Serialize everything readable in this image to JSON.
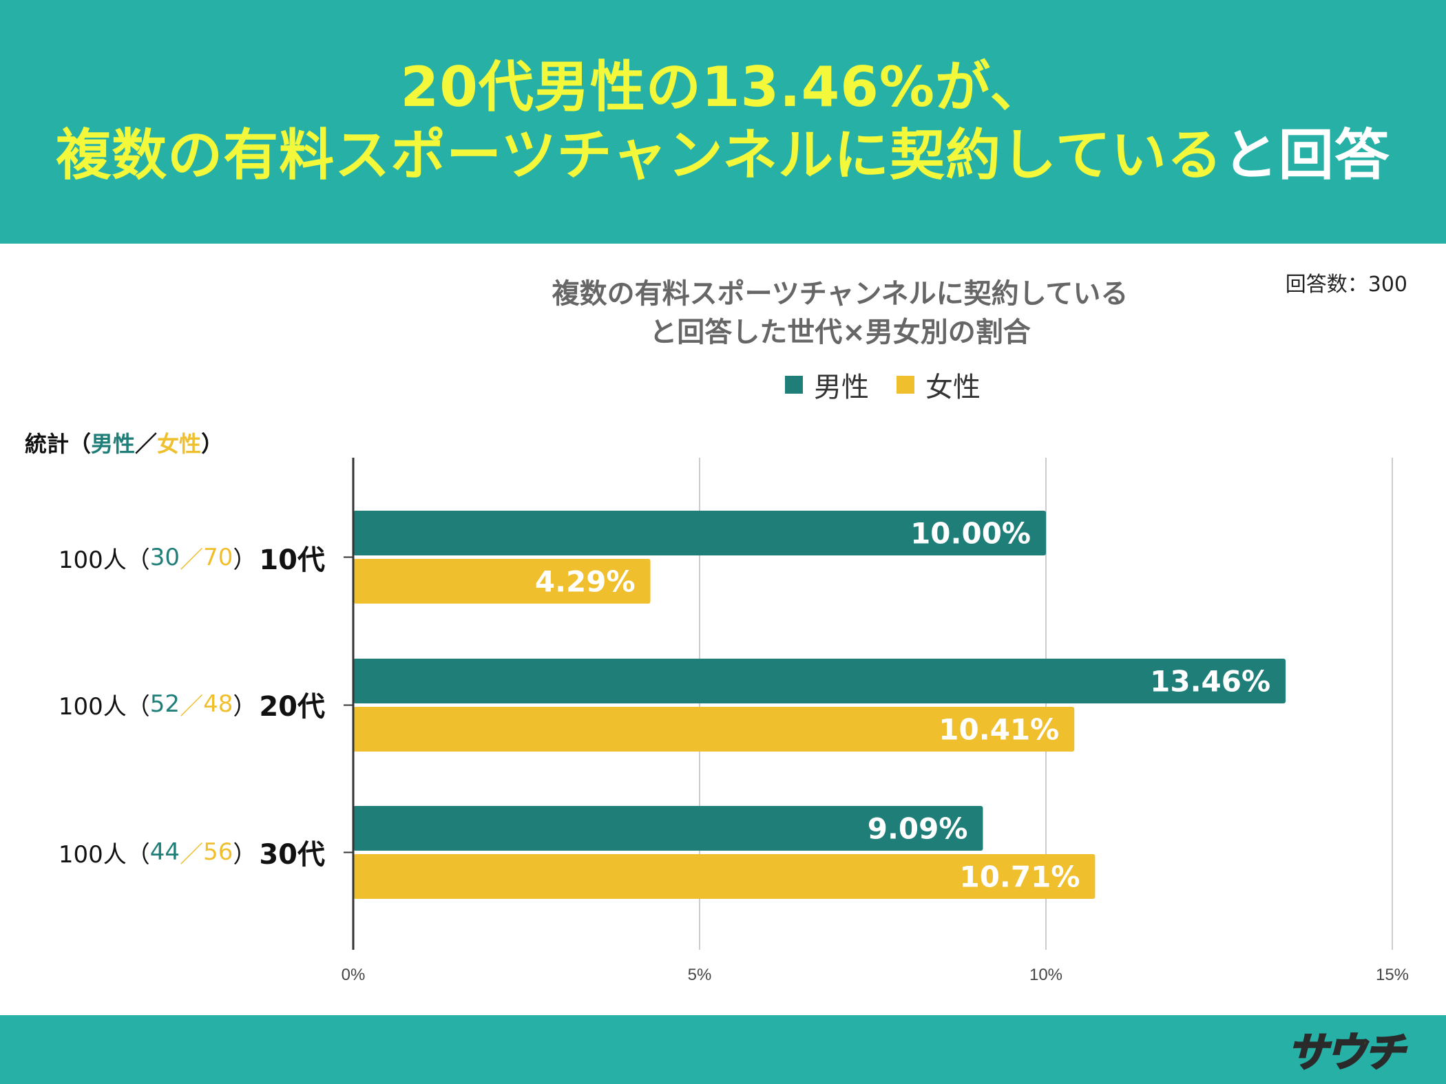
{
  "header": {
    "line1": "20代男性の13.46%が、",
    "line2_main": "複数の有料スポーツチャンネルに契約している",
    "line2_tail": "と回答"
  },
  "respondents": "回答数：300",
  "stats": {
    "label": "統計（",
    "male_word": "男性",
    "sep": "／",
    "female_word": "女性",
    "close": "）",
    "rows": [
      {
        "total": "100人（",
        "male": "30",
        "sep": "／",
        "female": "70",
        "close": "）",
        "age": "10代"
      },
      {
        "total": "100人（",
        "male": "52",
        "sep": "／",
        "female": "48",
        "close": "）",
        "age": "20代"
      },
      {
        "total": "100人（",
        "male": "44",
        "sep": "／",
        "female": "56",
        "close": "）",
        "age": "30代"
      }
    ]
  },
  "logo_text": "サウチ",
  "colors": {
    "male": "#1f7f78",
    "female": "#efbf2e",
    "header_bg": "#26b0a6",
    "headline": "#f3f83a"
  },
  "chart_data": {
    "type": "bar",
    "orientation": "horizontal",
    "title": [
      "複数の有料スポーツチャンネルに契約している",
      "と回答した世代×男女別の割合"
    ],
    "categories": [
      "10代",
      "20代",
      "30代"
    ],
    "series": [
      {
        "name": "男性",
        "values": [
          10.0,
          13.46,
          9.09
        ],
        "labels": [
          "10.00%",
          "13.46%",
          "9.09%"
        ]
      },
      {
        "name": "女性",
        "values": [
          4.29,
          10.41,
          10.71
        ],
        "labels": [
          "4.29%",
          "10.41%",
          "10.71%"
        ]
      }
    ],
    "xlim": [
      0,
      15
    ],
    "xticks": [
      "0%",
      "5%",
      "10%",
      "15%"
    ],
    "grid": true,
    "legend": "top"
  }
}
